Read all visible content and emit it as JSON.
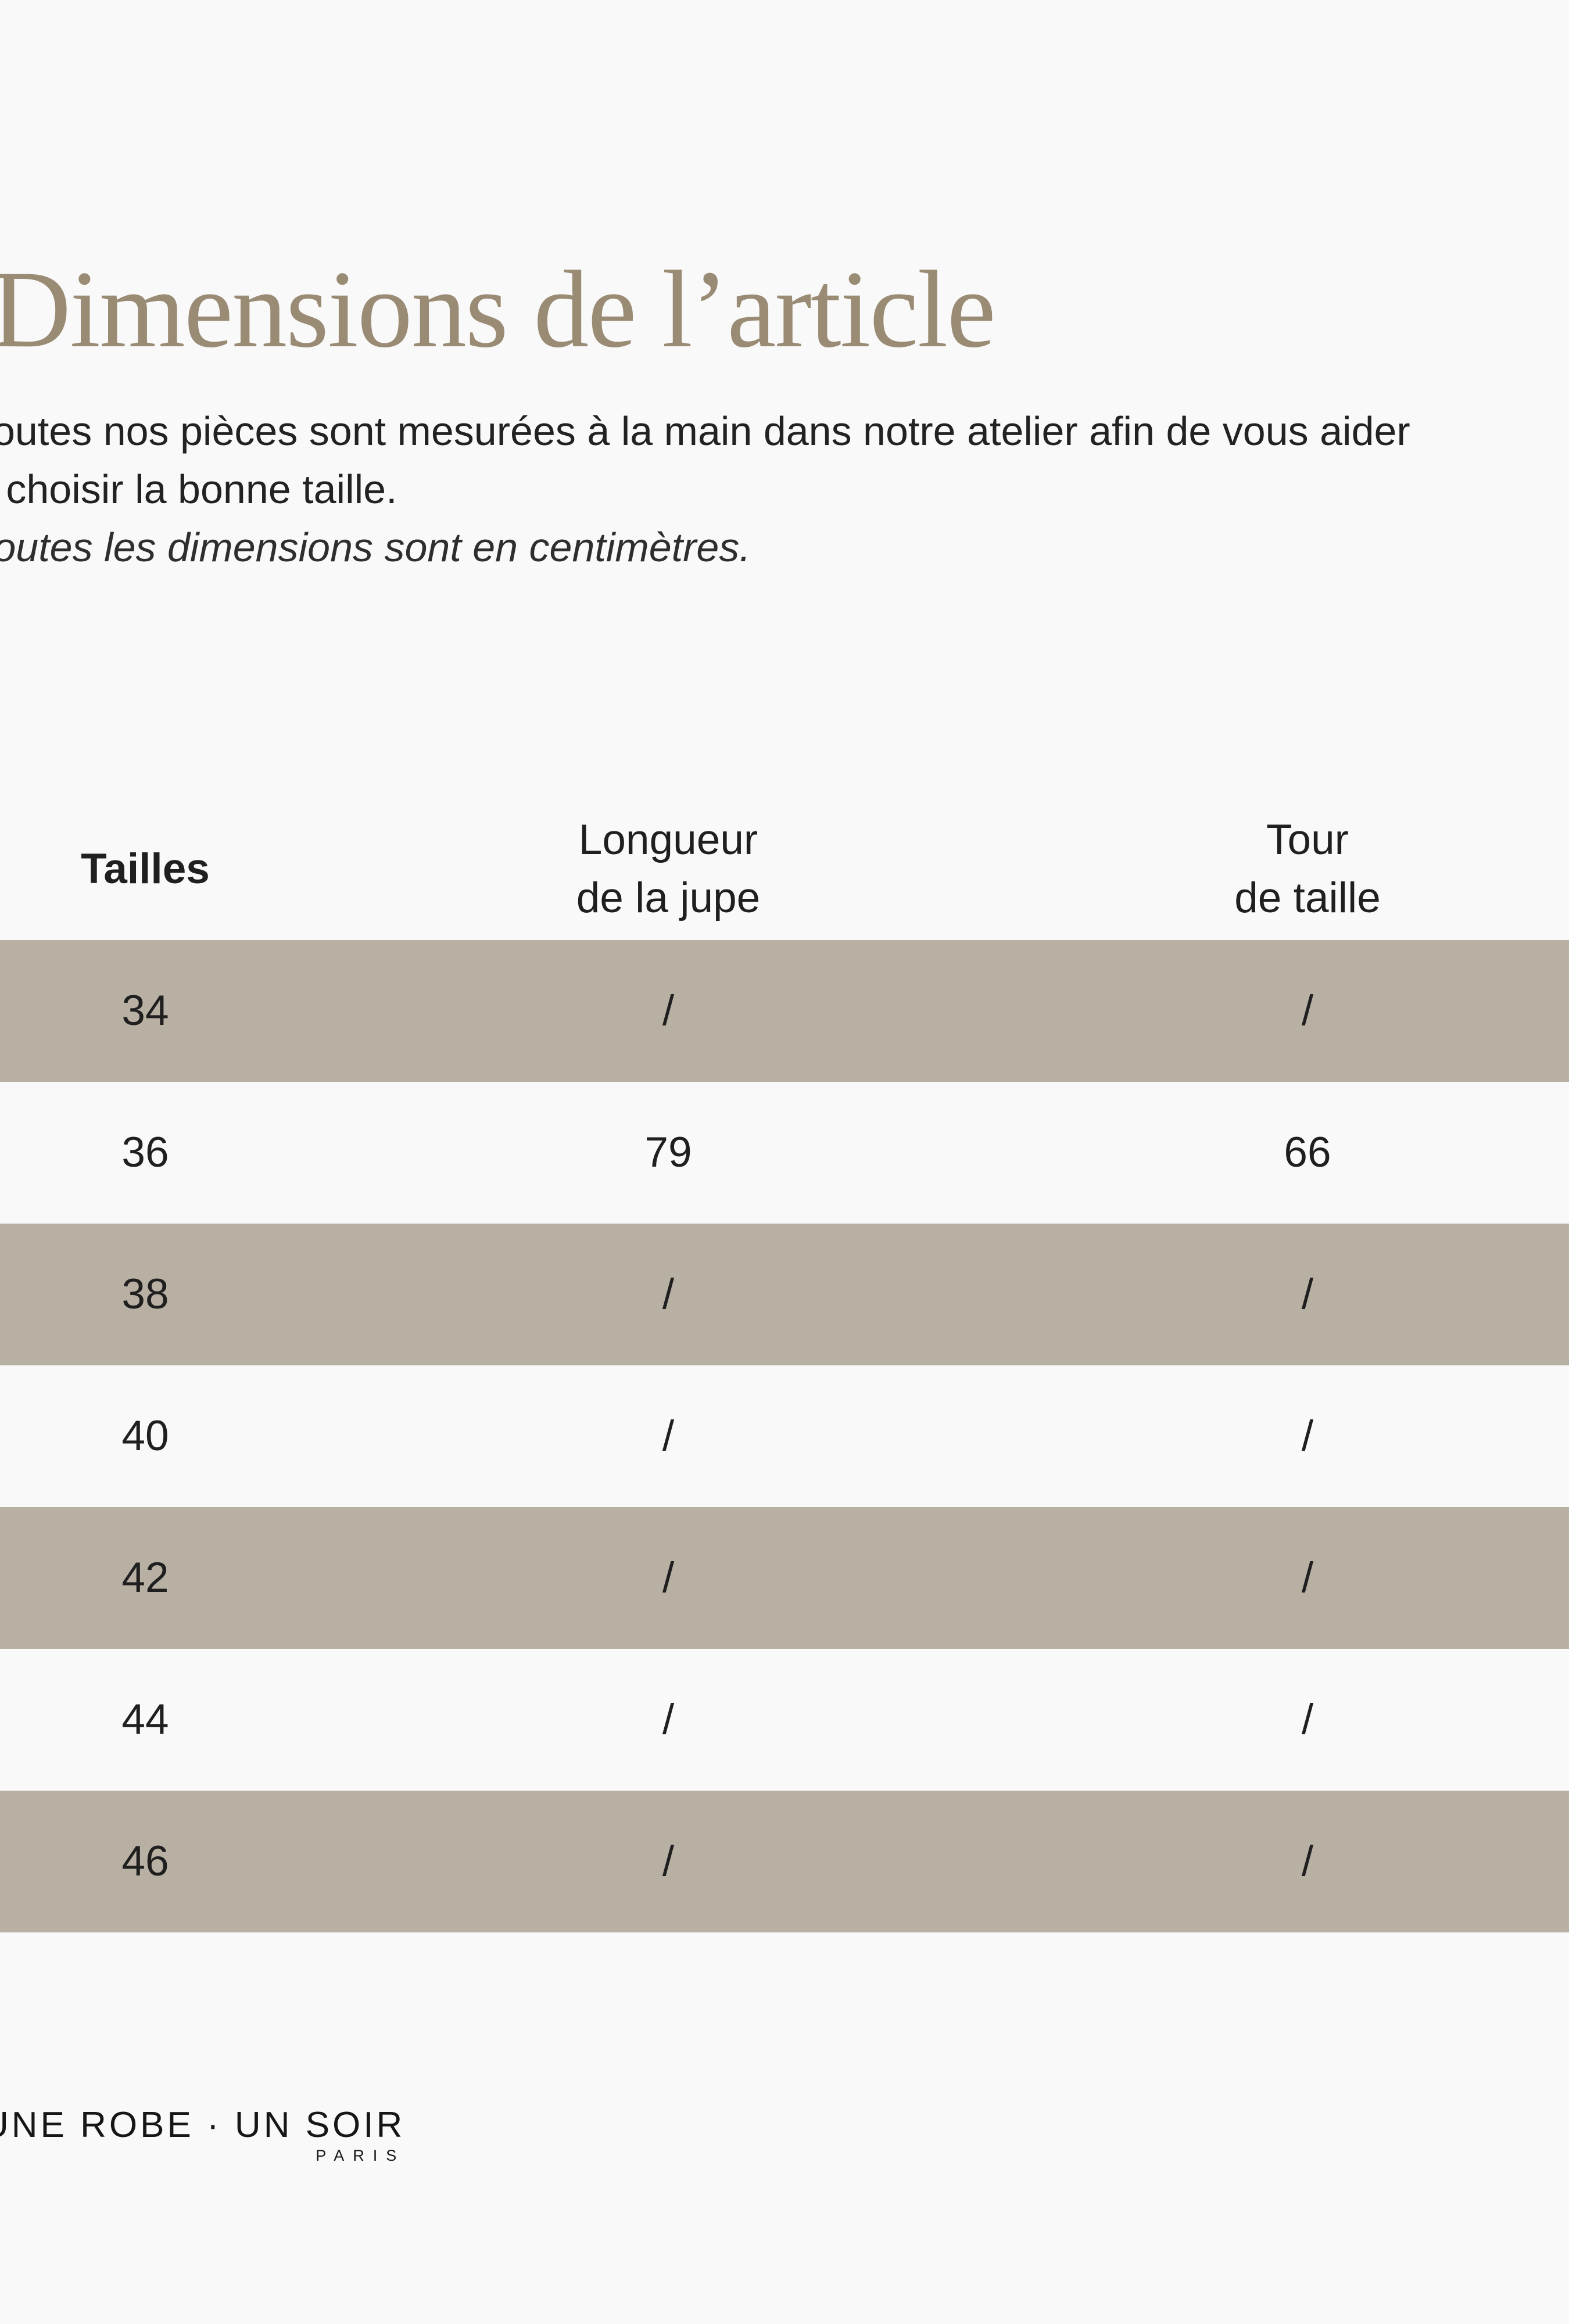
{
  "page": {
    "title": "Dimensions de l’article",
    "intro": {
      "line1": "Toutes nos pièces sont mesurées à la main dans notre atelier afin de vous aider",
      "line2": "à choisir la bonne taille.",
      "note": "Toutes les dimensions sont en centimètres."
    }
  },
  "table": {
    "columns": [
      {
        "lines": [
          "Tailles"
        ]
      },
      {
        "lines": [
          "Longueur",
          "de la jupe"
        ]
      },
      {
        "lines": [
          "Tour",
          "de taille"
        ]
      }
    ],
    "rows": [
      {
        "size": "34",
        "skirt_length": "/",
        "waist": "/"
      },
      {
        "size": "36",
        "skirt_length": "79",
        "waist": "66"
      },
      {
        "size": "38",
        "skirt_length": "/",
        "waist": "/"
      },
      {
        "size": "40",
        "skirt_length": "/",
        "waist": "/"
      },
      {
        "size": "42",
        "skirt_length": "/",
        "waist": "/"
      },
      {
        "size": "44",
        "skirt_length": "/",
        "waist": "/"
      },
      {
        "size": "46",
        "skirt_length": "/",
        "waist": "/"
      }
    ]
  },
  "brand": {
    "name": "UNE ROBE · UN SOIR",
    "city": "PARIS"
  },
  "colors": {
    "background": "#f9f9f9",
    "row_shaded": "#b8b0a3",
    "title": "#9a8b74",
    "text": "#1f1f1f"
  }
}
